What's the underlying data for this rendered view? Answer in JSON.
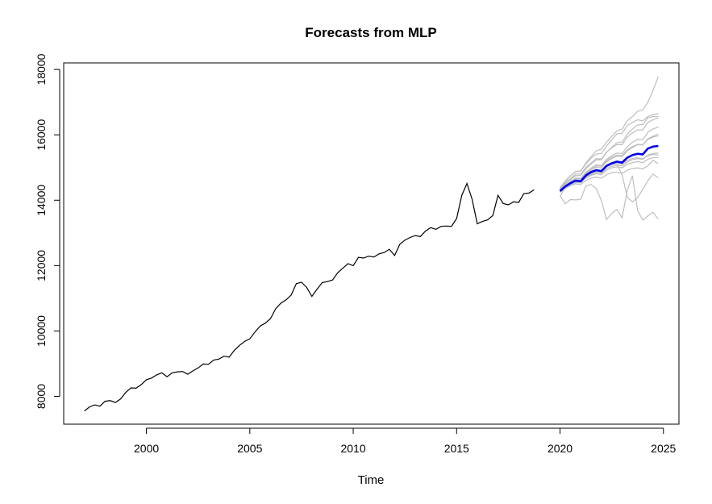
{
  "chart_data": {
    "type": "line",
    "title": "Forecasts from MLP",
    "xlabel": "Time",
    "ylabel": "",
    "xlim": [
      1996.0,
      2025.75
    ],
    "ylim": [
      7150,
      18200
    ],
    "x_ticks": [
      2000,
      2005,
      2010,
      2015,
      2020,
      2025
    ],
    "y_ticks": [
      8000,
      10000,
      12000,
      14000,
      16000,
      18000
    ],
    "grid": false,
    "colors": {
      "history": "#000000",
      "forecast": "#0000ee",
      "paths": "#bebebe"
    },
    "history": {
      "start": 1997.0,
      "frequency": 4,
      "values": [
        7550,
        7680,
        7740,
        7700,
        7850,
        7870,
        7810,
        7920,
        8120,
        8260,
        8250,
        8360,
        8510,
        8560,
        8660,
        8720,
        8600,
        8720,
        8750,
        8760,
        8680,
        8780,
        8870,
        8990,
        8980,
        9110,
        9140,
        9230,
        9200,
        9410,
        9560,
        9680,
        9760,
        9970,
        10150,
        10240,
        10380,
        10680,
        10850,
        10950,
        11100,
        11450,
        11490,
        11330,
        11060,
        11280,
        11480,
        11510,
        11560,
        11780,
        11920,
        12060,
        12000,
        12250,
        12230,
        12290,
        12260,
        12360,
        12400,
        12500,
        12310,
        12650,
        12780,
        12860,
        12920,
        12890,
        13060,
        13160,
        13110,
        13200,
        13210,
        13200,
        13440,
        14150,
        14510,
        14030,
        13280,
        13350,
        13400,
        13530,
        14150,
        13900,
        13860,
        13950,
        13930,
        14200,
        14220,
        14320
      ]
    },
    "forecast": {
      "start": 2020.0,
      "frequency": 4,
      "values": [
        14280,
        14420,
        14520,
        14600,
        14580,
        14760,
        14860,
        14920,
        14890,
        15050,
        15130,
        15180,
        15150,
        15300,
        15380,
        15420,
        15400,
        15580,
        15640,
        15660
      ]
    },
    "paths": [
      [
        14280,
        14450,
        14570,
        14680,
        14670,
        14860,
        14980,
        15080,
        15060,
        15250,
        15360,
        15440,
        15430,
        15640,
        15770,
        15860,
        15850,
        16080,
        16180,
        16240
      ],
      [
        14330,
        14520,
        14660,
        14800,
        14800,
        15000,
        15140,
        15270,
        15260,
        15470,
        15600,
        15700,
        15700,
        15930,
        16060,
        16150,
        16150,
        16380,
        16460,
        16520
      ],
      [
        14350,
        14570,
        14740,
        14880,
        14890,
        15110,
        15280,
        15410,
        15430,
        15660,
        15840,
        16030,
        16050,
        16280,
        16380,
        16460,
        16430,
        16560,
        16620,
        16650
      ],
      [
        14300,
        14500,
        14630,
        14750,
        14760,
        14960,
        15110,
        15230,
        15240,
        15460,
        15620,
        15760,
        15780,
        16020,
        16180,
        16300,
        16310,
        16520,
        16560,
        16560
      ],
      [
        14380,
        14590,
        14750,
        14870,
        14900,
        15140,
        15330,
        15510,
        15560,
        15780,
        15950,
        16120,
        16180,
        16430,
        16560,
        16720,
        16760,
        17000,
        17360,
        17780
      ],
      [
        14150,
        13890,
        14020,
        14010,
        14030,
        14440,
        14480,
        14360,
        13990,
        13410,
        13600,
        13720,
        13460,
        14300,
        14750,
        13690,
        13390,
        13520,
        13630,
        13420
      ],
      [
        14120,
        14380,
        14510,
        14580,
        14560,
        14720,
        14820,
        14880,
        14860,
        15020,
        15090,
        15120,
        14770,
        14100,
        13950,
        14080,
        14330,
        14600,
        14800,
        14680
      ],
      [
        14260,
        14400,
        14490,
        14560,
        14560,
        14690,
        14790,
        14850,
        14820,
        14970,
        15040,
        15070,
        15050,
        15170,
        15240,
        15270,
        15250,
        15380,
        15430,
        15440
      ],
      [
        14250,
        14380,
        14470,
        14540,
        14530,
        14670,
        14760,
        14810,
        14780,
        14920,
        14990,
        15020,
        14990,
        15100,
        15150,
        15180,
        15150,
        15250,
        15300,
        15310
      ],
      [
        14290,
        14440,
        14550,
        14650,
        14640,
        14810,
        14920,
        15010,
        14990,
        15170,
        15270,
        15350,
        15330,
        15510,
        15610,
        15700,
        15690,
        15880,
        15960,
        16020
      ],
      [
        14270,
        14410,
        14510,
        14600,
        14580,
        14740,
        14830,
        14900,
        14870,
        15030,
        15100,
        15130,
        15100,
        15220,
        15280,
        15300,
        15270,
        15360,
        15400,
        15380
      ],
      [
        14300,
        14460,
        14580,
        14670,
        14670,
        14840,
        14960,
        15050,
        15040,
        15210,
        15310,
        15380,
        15370,
        15540,
        15640,
        15710,
        15700,
        15860,
        15930,
        15970
      ],
      [
        14240,
        14360,
        14440,
        14500,
        14480,
        14600,
        14670,
        14710,
        14670,
        14780,
        14840,
        14860,
        14820,
        14920,
        14970,
        14990,
        14960,
        15050,
        15220,
        15120
      ]
    ]
  }
}
